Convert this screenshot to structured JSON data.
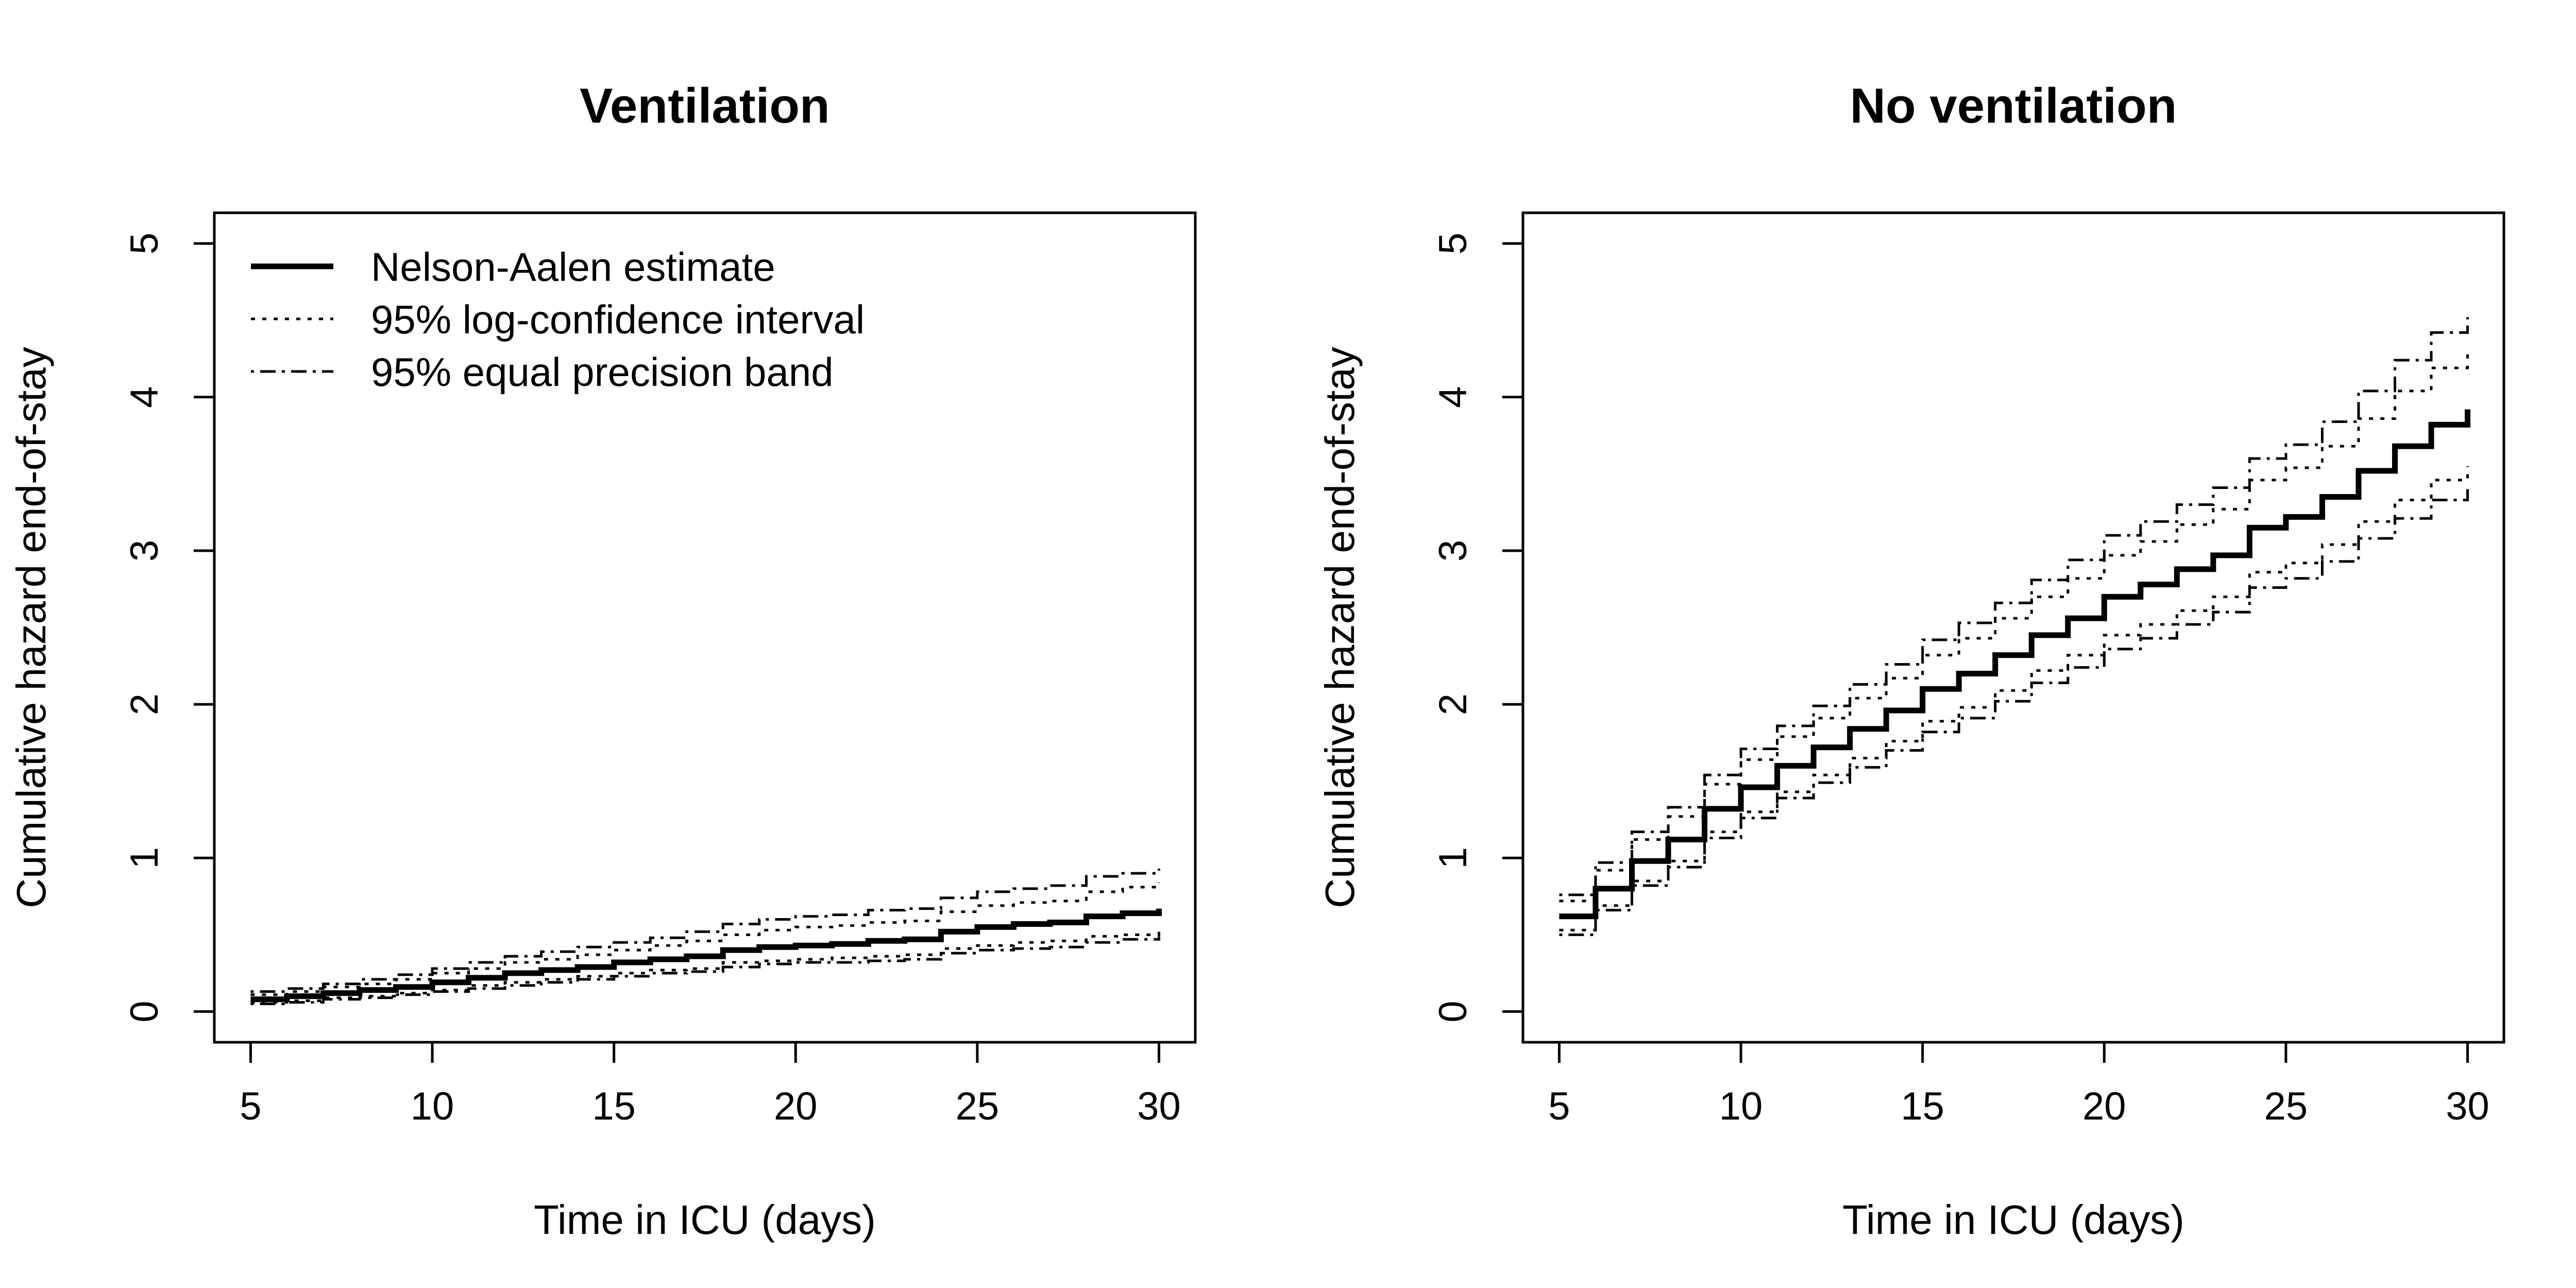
{
  "chart_data": [
    {
      "type": "line",
      "title": "Ventilation",
      "xlabel": "Time in ICU (days)",
      "ylabel": "Cumulative hazard end-of-stay",
      "xlim": [
        5,
        30
      ],
      "ylim": [
        0,
        5
      ],
      "xticks": [
        5,
        10,
        15,
        20,
        25,
        30
      ],
      "yticks": [
        0,
        1,
        2,
        3,
        4,
        5
      ],
      "legend": {
        "position": "top-left",
        "entries": [
          "Nelson-Aalen estimate",
          "95% log-confidence interval",
          "95% equal precision band"
        ]
      },
      "x": [
        5,
        6,
        7,
        8,
        9,
        10,
        11,
        12,
        13,
        14,
        15,
        16,
        17,
        18,
        19,
        20,
        21,
        22,
        23,
        24,
        25,
        26,
        27,
        28,
        29,
        30
      ],
      "series": [
        {
          "name": "Nelson-Aalen estimate",
          "style": "solid",
          "values": [
            0.08,
            0.1,
            0.12,
            0.14,
            0.16,
            0.19,
            0.22,
            0.25,
            0.27,
            0.29,
            0.32,
            0.34,
            0.36,
            0.4,
            0.42,
            0.43,
            0.44,
            0.46,
            0.47,
            0.52,
            0.55,
            0.57,
            0.58,
            0.62,
            0.64,
            0.67
          ]
        },
        {
          "name": "95% log-confidence upper",
          "style": "dotted",
          "values": [
            0.11,
            0.13,
            0.16,
            0.18,
            0.21,
            0.25,
            0.28,
            0.32,
            0.34,
            0.37,
            0.4,
            0.43,
            0.46,
            0.5,
            0.53,
            0.55,
            0.56,
            0.58,
            0.59,
            0.65,
            0.69,
            0.71,
            0.72,
            0.78,
            0.81,
            0.84
          ]
        },
        {
          "name": "95% log-confidence lower",
          "style": "dotted",
          "values": [
            0.06,
            0.07,
            0.09,
            0.1,
            0.12,
            0.14,
            0.17,
            0.19,
            0.21,
            0.23,
            0.25,
            0.27,
            0.28,
            0.32,
            0.33,
            0.34,
            0.35,
            0.36,
            0.37,
            0.41,
            0.43,
            0.45,
            0.46,
            0.49,
            0.5,
            0.53
          ]
        },
        {
          "name": "95% equal precision upper",
          "style": "dashdot",
          "values": [
            0.13,
            0.15,
            0.18,
            0.21,
            0.24,
            0.28,
            0.32,
            0.36,
            0.39,
            0.42,
            0.45,
            0.48,
            0.52,
            0.57,
            0.6,
            0.62,
            0.63,
            0.66,
            0.67,
            0.74,
            0.78,
            0.8,
            0.82,
            0.88,
            0.9,
            0.93
          ]
        },
        {
          "name": "95% equal precision lower",
          "style": "dashdot",
          "values": [
            0.05,
            0.06,
            0.08,
            0.09,
            0.11,
            0.13,
            0.15,
            0.17,
            0.19,
            0.21,
            0.23,
            0.25,
            0.26,
            0.29,
            0.31,
            0.32,
            0.32,
            0.33,
            0.34,
            0.38,
            0.4,
            0.41,
            0.42,
            0.45,
            0.47,
            0.49
          ]
        }
      ]
    },
    {
      "type": "line",
      "title": "No ventilation",
      "xlabel": "Time in ICU (days)",
      "ylabel": "Cumulative hazard end-of-stay",
      "xlim": [
        5,
        30
      ],
      "ylim": [
        0,
        5
      ],
      "xticks": [
        5,
        10,
        15,
        20,
        25,
        30
      ],
      "yticks": [
        0,
        1,
        2,
        3,
        4,
        5
      ],
      "x": [
        5,
        6,
        7,
        8,
        9,
        10,
        11,
        12,
        13,
        14,
        15,
        16,
        17,
        18,
        19,
        20,
        21,
        22,
        23,
        24,
        25,
        26,
        27,
        28,
        29,
        30
      ],
      "series": [
        {
          "name": "Nelson-Aalen estimate",
          "style": "solid",
          "values": [
            0.62,
            0.8,
            0.98,
            1.12,
            1.32,
            1.46,
            1.6,
            1.72,
            1.84,
            1.96,
            2.1,
            2.2,
            2.32,
            2.45,
            2.56,
            2.7,
            2.78,
            2.88,
            2.97,
            3.15,
            3.22,
            3.35,
            3.52,
            3.68,
            3.82,
            3.92
          ]
        },
        {
          "name": "95% log-confidence upper",
          "style": "dotted",
          "values": [
            0.72,
            0.92,
            1.12,
            1.27,
            1.48,
            1.64,
            1.79,
            1.91,
            2.04,
            2.17,
            2.32,
            2.43,
            2.56,
            2.7,
            2.82,
            2.97,
            3.06,
            3.17,
            3.27,
            3.46,
            3.54,
            3.68,
            3.86,
            4.04,
            4.19,
            4.3
          ]
        },
        {
          "name": "95% log-confidence lower",
          "style": "dotted",
          "values": [
            0.53,
            0.69,
            0.85,
            0.98,
            1.17,
            1.3,
            1.43,
            1.54,
            1.65,
            1.76,
            1.89,
            1.98,
            2.09,
            2.22,
            2.32,
            2.45,
            2.52,
            2.61,
            2.7,
            2.86,
            2.92,
            3.04,
            3.19,
            3.33,
            3.46,
            3.55
          ]
        },
        {
          "name": "95% equal precision upper",
          "style": "dashdot",
          "values": [
            0.76,
            0.97,
            1.17,
            1.33,
            1.54,
            1.71,
            1.86,
            1.99,
            2.13,
            2.26,
            2.42,
            2.53,
            2.66,
            2.81,
            2.94,
            3.1,
            3.19,
            3.3,
            3.41,
            3.6,
            3.69,
            3.84,
            4.04,
            4.24,
            4.42,
            4.52
          ]
        },
        {
          "name": "95% equal precision lower",
          "style": "dashdot",
          "values": [
            0.5,
            0.66,
            0.82,
            0.94,
            1.13,
            1.26,
            1.39,
            1.49,
            1.59,
            1.7,
            1.82,
            1.91,
            2.02,
            2.14,
            2.24,
            2.36,
            2.43,
            2.52,
            2.6,
            2.76,
            2.82,
            2.93,
            3.08,
            3.21,
            3.33,
            3.42
          ]
        }
      ]
    }
  ]
}
